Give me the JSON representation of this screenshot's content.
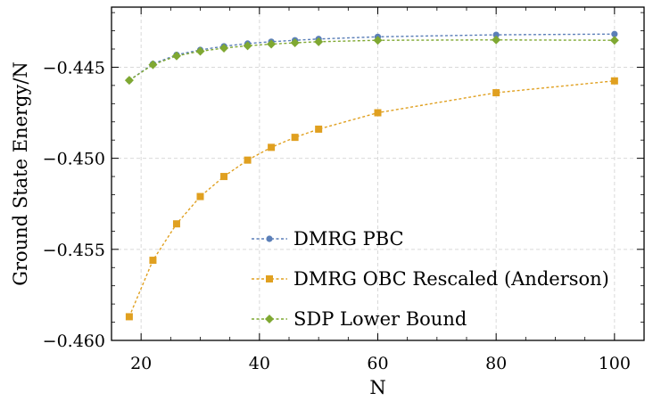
{
  "chart_data": {
    "type": "line",
    "title": "",
    "xlabel": "N",
    "ylabel": "Ground State Energy/N",
    "xlim": [
      15,
      105
    ],
    "ylim": [
      -0.46,
      -0.4417
    ],
    "xticks": [
      20,
      40,
      60,
      80,
      100
    ],
    "yticks": [
      -0.46,
      -0.455,
      -0.45,
      -0.445
    ],
    "xtick_labels": [
      "20",
      "40",
      "60",
      "80",
      "100"
    ],
    "ytick_labels": [
      "−0.460",
      "−0.455",
      "−0.450",
      "−0.445"
    ],
    "grid": true,
    "grid_style": "dashed",
    "legend_position": "lower-right-center",
    "series": [
      {
        "name": "DMRG PBC",
        "color": "#5b7fb8",
        "marker": "circle",
        "line_style": "dotted",
        "x": [
          18,
          22,
          26,
          30,
          34,
          38,
          42,
          46,
          50,
          60,
          80,
          100
        ],
        "y": [
          -0.44572,
          -0.44482,
          -0.44432,
          -0.44405,
          -0.44385,
          -0.4437,
          -0.4436,
          -0.44352,
          -0.44345,
          -0.44333,
          -0.44322,
          -0.44318
        ]
      },
      {
        "name": "DMRG OBC Rescaled (Anderson)",
        "color": "#e0a020",
        "marker": "square",
        "line_style": "dotted",
        "x": [
          18,
          22,
          26,
          30,
          34,
          38,
          42,
          46,
          50,
          60,
          80,
          100
        ],
        "y": [
          -0.4587,
          -0.4556,
          -0.4536,
          -0.4521,
          -0.451,
          -0.4501,
          -0.4494,
          -0.44885,
          -0.4484,
          -0.4475,
          -0.4464,
          -0.44575
        ]
      },
      {
        "name": "SDP Lower Bound",
        "color": "#7fa832",
        "marker": "diamond",
        "line_style": "dotted",
        "x": [
          18,
          22,
          26,
          30,
          34,
          38,
          42,
          46,
          50,
          60,
          80,
          100
        ],
        "y": [
          -0.44572,
          -0.44486,
          -0.44438,
          -0.44412,
          -0.44395,
          -0.44382,
          -0.44373,
          -0.44366,
          -0.4436,
          -0.44352,
          -0.4435,
          -0.44352
        ]
      }
    ]
  }
}
